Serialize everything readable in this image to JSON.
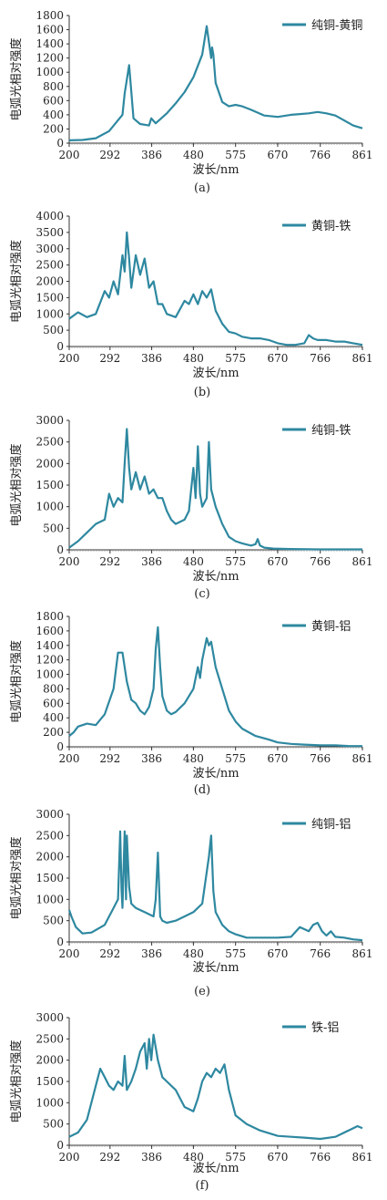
{
  "colors": {
    "series": "#2e88a0",
    "axis": "#333333",
    "tick": "#888888"
  },
  "chart_data": [
    {
      "type": "line",
      "caption": "(a)",
      "ylabel": "电弧光相对强度",
      "xlabel": "波长/nm",
      "series": [
        {
          "name": "纯铜-黄铜",
          "x": [
            200,
            230,
            260,
            290,
            320,
            325,
            335,
            345,
            360,
            380,
            385,
            395,
            420,
            440,
            460,
            480,
            500,
            510,
            520,
            522,
            525,
            530,
            545,
            560,
            575,
            590,
            610,
            640,
            670,
            700,
            720,
            740,
            760,
            780,
            800,
            820,
            840,
            861
          ],
          "y": [
            40,
            45,
            70,
            170,
            400,
            700,
            1100,
            350,
            270,
            250,
            350,
            280,
            420,
            560,
            720,
            930,
            1250,
            1650,
            1200,
            1350,
            1250,
            850,
            580,
            520,
            540,
            520,
            470,
            390,
            370,
            400,
            410,
            420,
            440,
            420,
            390,
            320,
            250,
            210
          ]
        }
      ],
      "xticks": [
        "200",
        "292",
        "386",
        "480",
        "575",
        "670",
        "766",
        "861"
      ],
      "xlim": [
        200,
        861
      ],
      "yticks": [
        "0",
        "200",
        "400",
        "600",
        "800",
        "1000",
        "1200",
        "1400",
        "1600",
        "1800"
      ],
      "ylim": [
        0,
        1800
      ]
    },
    {
      "type": "line",
      "caption": "(b)",
      "ylabel": "电弧光相对强度",
      "xlabel": "波长/nm",
      "series": [
        {
          "name": "黄铜-铁",
          "x": [
            200,
            210,
            220,
            240,
            260,
            280,
            290,
            300,
            310,
            320,
            325,
            330,
            335,
            340,
            350,
            360,
            370,
            380,
            390,
            400,
            410,
            420,
            440,
            460,
            470,
            480,
            490,
            500,
            510,
            520,
            530,
            545,
            560,
            575,
            590,
            610,
            630,
            650,
            670,
            690,
            710,
            730,
            740,
            750,
            760,
            780,
            800,
            820,
            840,
            861
          ],
          "y": [
            850,
            950,
            1050,
            900,
            1000,
            1700,
            1500,
            2000,
            1600,
            2800,
            2300,
            3500,
            2700,
            1800,
            2800,
            2200,
            2700,
            1800,
            2000,
            1300,
            1300,
            1000,
            900,
            1400,
            1300,
            1600,
            1300,
            1700,
            1500,
            1750,
            1100,
            700,
            450,
            400,
            300,
            250,
            250,
            200,
            100,
            50,
            50,
            100,
            350,
            250,
            200,
            200,
            150,
            150,
            100,
            50
          ]
        }
      ],
      "xticks": [
        "200",
        "292",
        "386",
        "480",
        "575",
        "670",
        "766",
        "861"
      ],
      "xlim": [
        200,
        861
      ],
      "yticks": [
        "0",
        "500",
        "1000",
        "1500",
        "2000",
        "2500",
        "3000",
        "3500",
        "4000"
      ],
      "ylim": [
        0,
        4000
      ]
    },
    {
      "type": "line",
      "caption": "(c)",
      "ylabel": "电弧光相对强度",
      "xlabel": "波长/nm",
      "series": [
        {
          "name": "纯铜-铁",
          "x": [
            200,
            220,
            240,
            260,
            280,
            290,
            300,
            310,
            320,
            325,
            330,
            335,
            340,
            350,
            360,
            370,
            380,
            390,
            400,
            410,
            420,
            430,
            440,
            460,
            470,
            480,
            485,
            490,
            495,
            500,
            510,
            515,
            520,
            530,
            545,
            560,
            575,
            590,
            610,
            620,
            625,
            630,
            640,
            660,
            700,
            760,
            820,
            861
          ],
          "y": [
            50,
            200,
            400,
            600,
            700,
            1300,
            1000,
            1200,
            1100,
            2000,
            2800,
            1900,
            1400,
            1800,
            1400,
            1700,
            1300,
            1400,
            1200,
            1200,
            900,
            700,
            600,
            700,
            900,
            1900,
            1200,
            2400,
            1300,
            1000,
            1200,
            2500,
            1400,
            1000,
            600,
            300,
            200,
            150,
            100,
            130,
            250,
            100,
            50,
            30,
            20,
            10,
            10,
            10
          ]
        }
      ],
      "xticks": [
        "200",
        "292",
        "386",
        "480",
        "575",
        "670",
        "766",
        "861"
      ],
      "xlim": [
        200,
        861
      ],
      "yticks": [
        "0",
        "500",
        "1000",
        "1500",
        "2000",
        "2500",
        "3000"
      ],
      "ylim": [
        0,
        3000
      ]
    },
    {
      "type": "line",
      "caption": "(d)",
      "ylabel": "电弧光相对强度",
      "xlabel": "波长/nm",
      "series": [
        {
          "name": "黄铜-铝",
          "x": [
            200,
            210,
            220,
            240,
            260,
            280,
            300,
            310,
            320,
            330,
            340,
            350,
            360,
            370,
            380,
            390,
            395,
            400,
            405,
            410,
            420,
            430,
            440,
            460,
            480,
            490,
            495,
            500,
            510,
            515,
            520,
            530,
            545,
            560,
            575,
            590,
            620,
            650,
            670,
            700,
            730,
            766,
            800,
            830,
            861
          ],
          "y": [
            150,
            200,
            280,
            320,
            300,
            450,
            800,
            1300,
            1300,
            900,
            650,
            600,
            500,
            450,
            550,
            800,
            1350,
            1650,
            1100,
            700,
            500,
            450,
            480,
            600,
            800,
            1100,
            950,
            1200,
            1500,
            1400,
            1450,
            1100,
            800,
            500,
            350,
            250,
            150,
            100,
            60,
            40,
            30,
            20,
            20,
            10,
            10
          ]
        }
      ],
      "xticks": [
        "200",
        "292",
        "386",
        "480",
        "575",
        "670",
        "766",
        "861"
      ],
      "xlim": [
        200,
        861
      ],
      "yticks": [
        "0",
        "200",
        "400",
        "600",
        "800",
        "1000",
        "1200",
        "1400",
        "1600",
        "1800"
      ],
      "ylim": [
        0,
        1800
      ]
    },
    {
      "type": "line",
      "caption": "(e)",
      "ylabel": "电弧光相对强度",
      "xlabel": "波长/nm",
      "series": [
        {
          "name": "纯铜-铝",
          "x": [
            200,
            205,
            215,
            230,
            250,
            280,
            300,
            310,
            315,
            318,
            320,
            322,
            325,
            328,
            330,
            335,
            340,
            350,
            370,
            390,
            395,
            400,
            405,
            410,
            420,
            440,
            460,
            480,
            500,
            515,
            520,
            525,
            530,
            545,
            560,
            575,
            600,
            640,
            670,
            700,
            720,
            740,
            750,
            760,
            770,
            780,
            790,
            800,
            820,
            840,
            861
          ],
          "y": [
            750,
            600,
            350,
            200,
            220,
            400,
            800,
            1000,
            2600,
            1200,
            800,
            1500,
            2600,
            1000,
            2500,
            1300,
            900,
            800,
            700,
            600,
            1000,
            2100,
            600,
            500,
            450,
            500,
            600,
            700,
            900,
            2000,
            2500,
            1200,
            700,
            400,
            250,
            180,
            100,
            100,
            100,
            120,
            350,
            250,
            400,
            450,
            250,
            150,
            250,
            120,
            100,
            60,
            40
          ]
        }
      ],
      "xticks": [
        "200",
        "292",
        "386",
        "480",
        "575",
        "670",
        "766",
        "861"
      ],
      "xlim": [
        200,
        861
      ],
      "yticks": [
        "0",
        "500",
        "1000",
        "1500",
        "2000",
        "2500",
        "3000"
      ],
      "ylim": [
        0,
        3000
      ]
    },
    {
      "type": "line",
      "caption": "(f)",
      "ylabel": "电弧光相对强度",
      "xlabel": "波长/nm",
      "series": [
        {
          "name": "铁-铝",
          "x": [
            200,
            220,
            240,
            260,
            270,
            280,
            290,
            300,
            310,
            320,
            325,
            330,
            340,
            350,
            360,
            370,
            375,
            380,
            385,
            390,
            400,
            410,
            420,
            440,
            460,
            480,
            490,
            500,
            510,
            520,
            530,
            540,
            550,
            560,
            575,
            600,
            630,
            670,
            700,
            730,
            766,
            800,
            830,
            850,
            861
          ],
          "y": [
            200,
            300,
            600,
            1400,
            1800,
            1600,
            1400,
            1300,
            1500,
            1400,
            2100,
            1300,
            1500,
            1800,
            2200,
            2400,
            1800,
            2500,
            2000,
            2600,
            2000,
            1600,
            1500,
            1300,
            900,
            800,
            1100,
            1500,
            1700,
            1600,
            1800,
            1700,
            1900,
            1300,
            700,
            500,
            350,
            220,
            200,
            180,
            150,
            200,
            350,
            450,
            400
          ]
        }
      ],
      "xticks": [
        "200",
        "292",
        "386",
        "480",
        "575",
        "670",
        "766",
        "861"
      ],
      "xlim": [
        200,
        861
      ],
      "yticks": [
        "0",
        "500",
        "1000",
        "1500",
        "2000",
        "2500",
        "3000"
      ],
      "ylim": [
        0,
        3000
      ]
    }
  ]
}
